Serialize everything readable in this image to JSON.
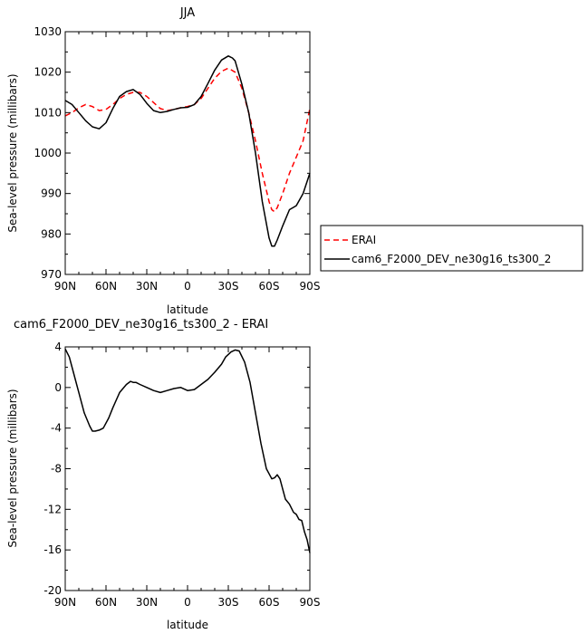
{
  "chart_data": [
    {
      "type": "line",
      "title": "JJA",
      "xlabel": "latitude",
      "ylabel": "Sea-level pressure (millibars)",
      "x_tick_labels": [
        "90N",
        "60N",
        "30N",
        "0",
        "30S",
        "60S",
        "90S"
      ],
      "x_ticks": [
        90,
        60,
        30,
        0,
        -30,
        -60,
        -90
      ],
      "xlim": [
        90,
        -90
      ],
      "ylim": [
        970,
        1030
      ],
      "y_ticks": [
        970,
        980,
        990,
        1000,
        1010,
        1020,
        1030
      ],
      "legend_position": "right",
      "series": [
        {
          "name": "ERAI",
          "color": "#ff0000",
          "dash": "dashed",
          "x": [
            90,
            85,
            80,
            75,
            70,
            65,
            60,
            55,
            50,
            45,
            40,
            35,
            30,
            25,
            20,
            15,
            10,
            5,
            0,
            -5,
            -10,
            -15,
            -20,
            -25,
            -30,
            -35,
            -40,
            -45,
            -50,
            -55,
            -60,
            -62,
            -64,
            -66,
            -70,
            -75,
            -80,
            -85,
            -90
          ],
          "y": [
            1009.2,
            1010.0,
            1011.2,
            1012.0,
            1011.5,
            1010.5,
            1010.8,
            1012.0,
            1013.5,
            1014.5,
            1015.0,
            1015.0,
            1014.0,
            1012.5,
            1011.0,
            1010.5,
            1010.8,
            1011.2,
            1011.5,
            1012.0,
            1013.5,
            1016.0,
            1018.5,
            1020.2,
            1021.0,
            1020.0,
            1016.0,
            1010.0,
            1003.0,
            995.0,
            988.0,
            986.0,
            985.5,
            986.5,
            990.0,
            995.0,
            999.0,
            1003.0,
            1011.0
          ]
        },
        {
          "name": "cam6_F2000_DEV_ne30g16_ts300_2",
          "color": "#000000",
          "dash": "solid",
          "x": [
            90,
            85,
            80,
            75,
            70,
            65,
            60,
            55,
            50,
            45,
            40,
            35,
            30,
            25,
            20,
            15,
            10,
            5,
            0,
            -5,
            -10,
            -15,
            -20,
            -25,
            -30,
            -33,
            -35,
            -40,
            -45,
            -50,
            -55,
            -60,
            -62,
            -64,
            -66,
            -70,
            -75,
            -80,
            -85,
            -90
          ],
          "y": [
            1013.0,
            1012.0,
            1010.0,
            1008.0,
            1006.5,
            1006.0,
            1007.5,
            1011.0,
            1014.0,
            1015.2,
            1015.7,
            1014.5,
            1012.3,
            1010.5,
            1010.0,
            1010.3,
            1010.8,
            1011.2,
            1011.3,
            1012.0,
            1014.0,
            1017.2,
            1020.5,
            1023.0,
            1024.0,
            1023.5,
            1022.8,
            1017.0,
            1010.0,
            1000.0,
            988.0,
            979.0,
            977.0,
            977.0,
            978.5,
            982.0,
            986.0,
            987.0,
            990.0,
            995.0
          ]
        }
      ]
    },
    {
      "type": "line",
      "title": "cam6_F2000_DEV_ne30g16_ts300_2 - ERAI",
      "xlabel": "latitude",
      "ylabel": "Sea-level pressure (millibars)",
      "x_tick_labels": [
        "90N",
        "60N",
        "30N",
        "0",
        "30S",
        "60S",
        "90S"
      ],
      "x_ticks": [
        90,
        60,
        30,
        0,
        -30,
        -60,
        -90
      ],
      "xlim": [
        90,
        -90
      ],
      "ylim": [
        -20,
        4
      ],
      "y_ticks": [
        -20,
        -16,
        -12,
        -8,
        -4,
        0,
        4
      ],
      "series": [
        {
          "color": "#000000",
          "dash": "solid",
          "x": [
            90,
            87,
            84,
            80,
            76,
            72,
            70,
            68,
            65,
            62,
            58,
            55,
            50,
            45,
            42,
            40,
            38,
            35,
            30,
            25,
            20,
            15,
            10,
            5,
            0,
            -5,
            -10,
            -15,
            -20,
            -25,
            -28,
            -32,
            -35,
            -38,
            -42,
            -46,
            -50,
            -54,
            -58,
            -62,
            -64,
            -66,
            -68,
            -70,
            -72,
            -75,
            -78,
            -80,
            -82,
            -84,
            -86,
            -88,
            -90
          ],
          "y": [
            3.8,
            3.0,
            1.5,
            -0.5,
            -2.5,
            -3.8,
            -4.3,
            -4.3,
            -4.2,
            -4.0,
            -3.0,
            -2.0,
            -0.5,
            0.3,
            0.6,
            0.5,
            0.5,
            0.3,
            0.0,
            -0.3,
            -0.5,
            -0.3,
            -0.1,
            0.0,
            -0.3,
            -0.2,
            0.3,
            0.8,
            1.5,
            2.3,
            3.0,
            3.5,
            3.7,
            3.6,
            2.5,
            0.5,
            -2.5,
            -5.5,
            -8.0,
            -9.0,
            -8.9,
            -8.6,
            -9.0,
            -10.0,
            -11.0,
            -11.5,
            -12.3,
            -12.5,
            -13.0,
            -13.1,
            -14.2,
            -15.0,
            -16.3
          ]
        }
      ]
    }
  ]
}
